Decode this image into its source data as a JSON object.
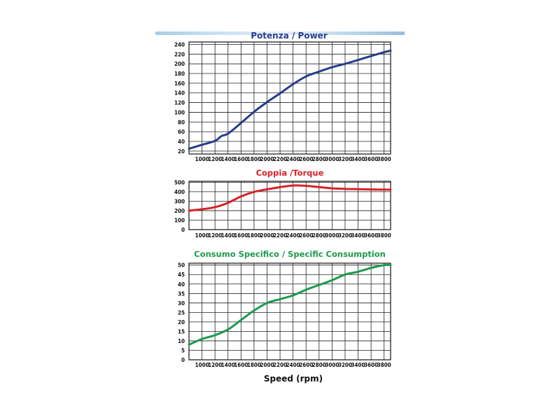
{
  "chart_data": [
    {
      "type": "line",
      "title": "Potenza / Power",
      "color": "#263c8c",
      "x_ticks": [
        "1000",
        "1200",
        "1400",
        "1600",
        "1800",
        "2000",
        "2200",
        "2400",
        "2600",
        "2800",
        "3000",
        "3200",
        "3400",
        "3600",
        "3800"
      ],
      "y_ticks": [
        "20",
        "40",
        "60",
        "80",
        "100",
        "120",
        "140",
        "160",
        "180",
        "200",
        "220",
        "240"
      ],
      "xlim": [
        800,
        3900
      ],
      "ylim": [
        14,
        245
      ],
      "series": [
        {
          "x": [
            800,
            1000,
            1200,
            1300,
            1400,
            1600,
            1800,
            2000,
            2200,
            2400,
            2600,
            2800,
            3000,
            3200,
            3400,
            3600,
            3800,
            3900
          ],
          "y": [
            25,
            33,
            41,
            51,
            56,
            78,
            101,
            121,
            139,
            158,
            174,
            184,
            193,
            200,
            208,
            216,
            224,
            227
          ]
        }
      ]
    },
    {
      "type": "line",
      "title": "Coppia /Torque",
      "color": "#d62228",
      "x_ticks": [
        "1000",
        "1200",
        "1400",
        "1600",
        "1800",
        "2000",
        "2200",
        "2400",
        "2600",
        "2800",
        "3000",
        "3200",
        "3400",
        "3600",
        "3800"
      ],
      "y_ticks": [
        "0",
        "100",
        "200",
        "300",
        "400",
        "500"
      ],
      "xlim": [
        800,
        3900
      ],
      "ylim": [
        0,
        510
      ],
      "series": [
        {
          "x": [
            800,
            1000,
            1200,
            1400,
            1600,
            1800,
            2000,
            2200,
            2400,
            2600,
            2800,
            3000,
            3200,
            3400,
            3600,
            3800,
            3900
          ],
          "y": [
            200,
            215,
            237,
            283,
            350,
            398,
            425,
            448,
            466,
            462,
            449,
            436,
            430,
            427,
            424,
            422,
            422
          ]
        }
      ]
    },
    {
      "type": "line",
      "title": "Consumo Specifico / Specific Consumption",
      "color": "#1c9a4c",
      "xlabel": "Speed (rpm)",
      "x_ticks": [
        "1000",
        "1200",
        "1400",
        "1600",
        "1800",
        "2000",
        "2200",
        "2400",
        "2600",
        "2800",
        "3000",
        "3200",
        "3400",
        "3600",
        "3800"
      ],
      "y_ticks": [
        "0",
        "5",
        "10",
        "15",
        "20",
        "25",
        "30",
        "35",
        "40",
        "45",
        "50"
      ],
      "xlim": [
        800,
        3900
      ],
      "ylim": [
        0,
        51
      ],
      "series": [
        {
          "x": [
            800,
            1000,
            1200,
            1400,
            1600,
            1800,
            2000,
            2200,
            2400,
            2600,
            2800,
            3000,
            3200,
            3400,
            3600,
            3800,
            3900
          ],
          "y": [
            8,
            11,
            13,
            16,
            21,
            26,
            30,
            32,
            34,
            37,
            39.5,
            42,
            45,
            46.5,
            48.5,
            50,
            50
          ]
        }
      ]
    }
  ]
}
